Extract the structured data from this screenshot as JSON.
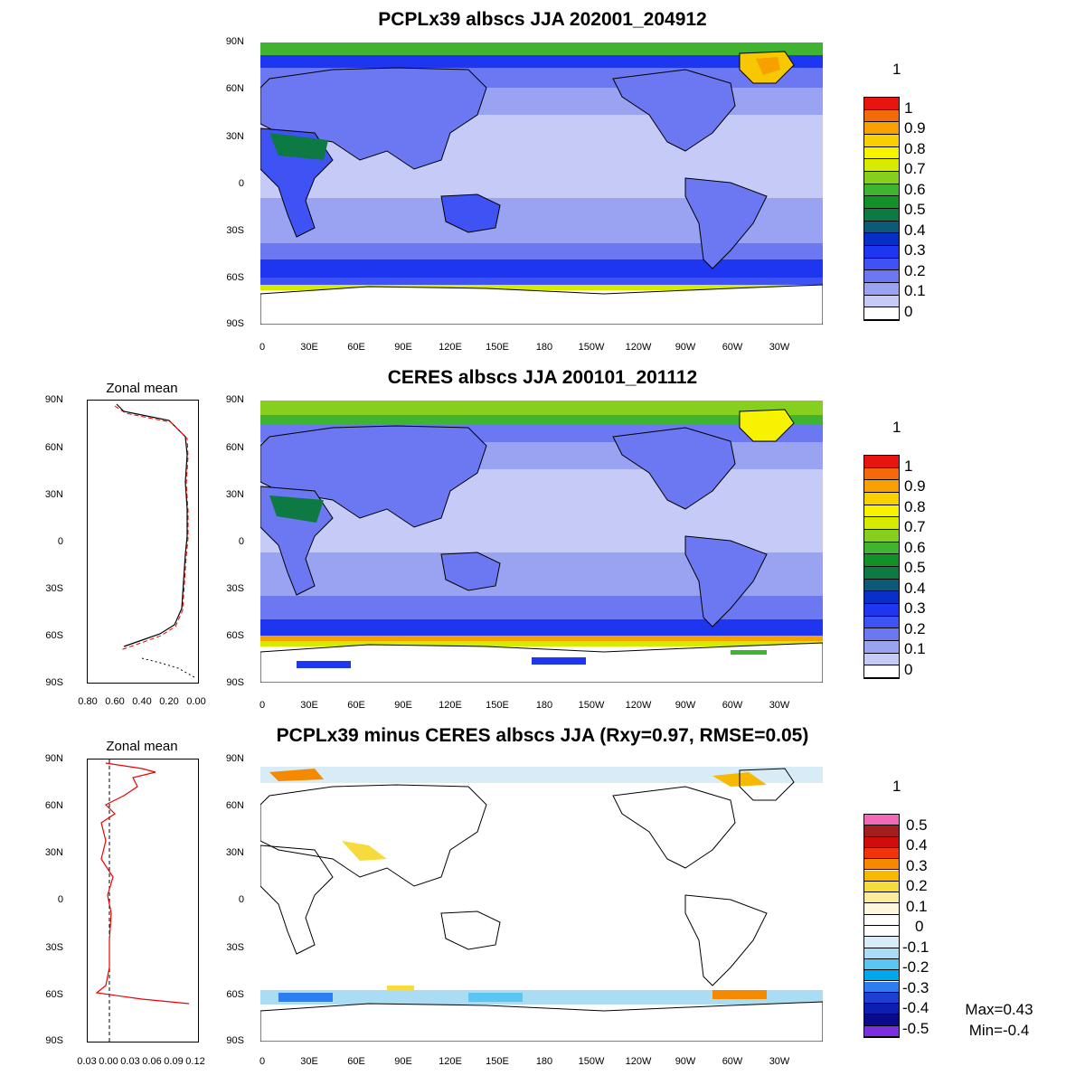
{
  "panels": [
    {
      "title": "PCPLx39 albscs JJA 202001_204912"
    },
    {
      "title": "CERES albscs JJA 200101_201112"
    },
    {
      "title": "PCPLx39 minus CERES albscs JJA (Rxy=0.97, RMSE=0.05)"
    }
  ],
  "lat_labels": [
    "90N",
    "60N",
    "30N",
    "0",
    "30S",
    "60S",
    "90S"
  ],
  "lon_labels": [
    "0",
    "30E",
    "60E",
    "90E",
    "120E",
    "150E",
    "180",
    "150W",
    "120W",
    "90W",
    "60W",
    "30W"
  ],
  "colorbar_top_label": "1",
  "colorbar_abs": {
    "labels": [
      "1",
      "0.9",
      "0.8",
      "0.7",
      "0.6",
      "0.5",
      "0.4",
      "0.3",
      "0.2",
      "0.1",
      "0"
    ],
    "colors": [
      "#e8140f",
      "#f26a0a",
      "#f7a000",
      "#f8d000",
      "#f7f200",
      "#d6eb00",
      "#86cf1f",
      "#3fb430",
      "#129226",
      "#0d7a43",
      "#0a5a78",
      "#0a2fc6",
      "#1f36f0",
      "#3f52f4",
      "#6b78f2",
      "#9aa2f2",
      "#c6caf6",
      "#ffffff"
    ]
  },
  "colorbar_diff": {
    "labels": [
      "0.5",
      "0.4",
      "0.3",
      "0.2",
      "0.1",
      "0",
      "-0.1",
      "-0.2",
      "-0.3",
      "-0.4",
      "-0.5"
    ],
    "colors": [
      "#f06ab8",
      "#a51e1e",
      "#cf0d0d",
      "#f2340a",
      "#f58a00",
      "#f7b800",
      "#f7da3c",
      "#fbeb9a",
      "#fff8dc",
      "#ffffff",
      "#ffffff",
      "#d8ecf8",
      "#aadcf4",
      "#5cc6f2",
      "#00a8ee",
      "#2b7df0",
      "#1d3fd4",
      "#0d1fb0",
      "#0a0a8a",
      "#7a2fe0"
    ]
  },
  "zonal_mean": [
    {
      "title": "Zonal mean",
      "x_ticks": [
        "0.80",
        "0.60",
        "0.40",
        "0.20",
        "0.00"
      ]
    },
    {
      "title": "Zonal mean",
      "x_ticks": [
        "0.03",
        "0.00",
        "0.03",
        "0.06",
        "0.09",
        "0.12"
      ]
    }
  ],
  "stats": {
    "max": "Max=0.43",
    "min": "Min=-0.4"
  },
  "map_colors": {
    "ocean_tropics": "#c6caf6",
    "ocean_mid": "#9aa2f2",
    "ocean_subpolar": "#6b78f2",
    "southern_band": "#1f36f0",
    "land": "#6b78f2",
    "land_dark": "#3f52f4",
    "desert": "#0d7a43",
    "arctic_green": "#3fb430",
    "greenland": "#f7c800",
    "antarctic_edge": "#d6eb00"
  }
}
